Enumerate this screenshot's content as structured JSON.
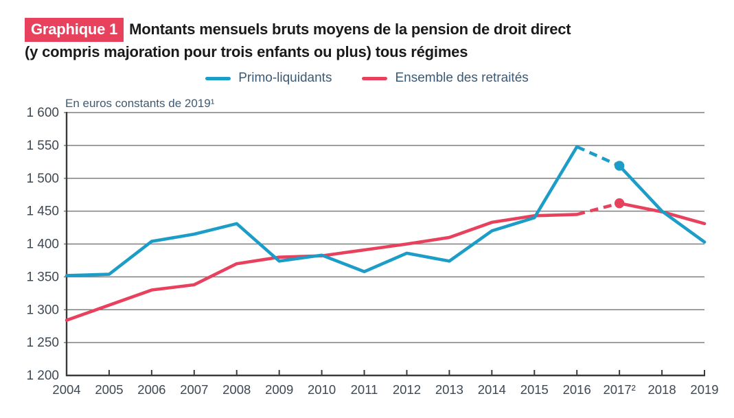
{
  "header": {
    "badge": "Graphique 1",
    "title_line1": "Montants mensuels bruts moyens de la pension de droit direct",
    "title_line2": "(y compris majoration pour trois enfants ou plus) tous régimes"
  },
  "legend": {
    "items": [
      {
        "label": "Primo-liquidants",
        "color": "#1b9dc7"
      },
      {
        "label": "Ensemble des retraités",
        "color": "#e8415e"
      }
    ]
  },
  "chart_data": {
    "type": "line",
    "title": "Montants mensuels bruts moyens de la pension de droit direct (y compris majoration pour trois enfants ou plus) tous régimes",
    "unit_note": "En euros constants de 2019¹",
    "x": [
      2004,
      2005,
      2006,
      2007,
      2008,
      2009,
      2010,
      2011,
      2012,
      2013,
      2014,
      2015,
      2016,
      2017,
      2018,
      2019
    ],
    "x_tick_labels": [
      "2004",
      "2005",
      "2006",
      "2007",
      "2008",
      "2009",
      "2010",
      "2011",
      "2012",
      "2013",
      "2014",
      "2015",
      "2016",
      "2017²",
      "2018",
      "2019"
    ],
    "ylim": [
      1200,
      1600
    ],
    "ytick_step": 50,
    "grid": true,
    "legend_position": "top",
    "series": [
      {
        "name": "Primo-liquidants",
        "color": "#1b9dc7",
        "values": [
          1352,
          1354,
          1404,
          1415,
          1431,
          1374,
          1383,
          1358,
          1386,
          1374,
          1420,
          1440,
          1548,
          1519,
          1450,
          1403
        ],
        "dashed_segment_x": [
          2016,
          2017
        ],
        "marker_x": 2017
      },
      {
        "name": "Ensemble des retraités",
        "color": "#e8415e",
        "values": [
          1284,
          1307,
          1330,
          1338,
          1370,
          1380,
          1382,
          1391,
          1400,
          1410,
          1433,
          1443,
          1445,
          1462,
          1449,
          1431
        ],
        "dashed_segment_x": [
          2016,
          2017
        ],
        "marker_x": 2017
      }
    ]
  },
  "colors": {
    "background": "#ffffff",
    "badge_bg": "#e8415e",
    "badge_text": "#ffffff",
    "title_text": "#1a1a1a",
    "axis": "#3a3a3a",
    "gridline": "#7f7f7f",
    "tick_label": "#3e4853",
    "unit_note_text": "#3d5a73",
    "legend_text": "#3b5a75"
  }
}
